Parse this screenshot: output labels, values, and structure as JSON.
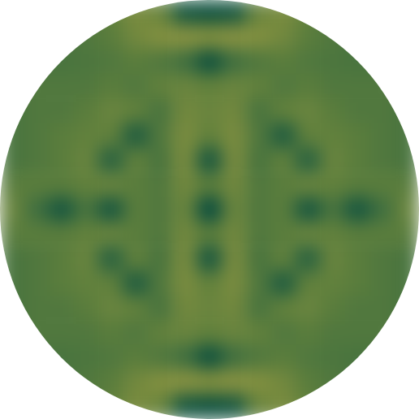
{
  "chart_data": {
    "type": "heatmap",
    "tick_labels": false,
    "zlim": [
      0,
      1
    ],
    "cells": [
      [
        null,
        null,
        null,
        0.45,
        0.55,
        0.7,
        0.6,
        0.1,
        0.05,
        0.1,
        0.6,
        0.7,
        0.55,
        0.45,
        null,
        null,
        null
      ],
      [
        null,
        null,
        0.4,
        0.45,
        0.5,
        0.65,
        0.75,
        0.8,
        0.75,
        0.8,
        0.75,
        0.65,
        0.5,
        0.45,
        0.4,
        null,
        null
      ],
      [
        null,
        0.4,
        0.4,
        0.42,
        0.45,
        0.5,
        0.45,
        0.35,
        0.05,
        0.35,
        0.45,
        0.5,
        0.45,
        0.42,
        0.4,
        0.4,
        null
      ],
      [
        0.45,
        0.45,
        0.45,
        0.45,
        0.5,
        0.45,
        0.55,
        0.6,
        0.55,
        0.6,
        0.55,
        0.45,
        0.5,
        0.45,
        0.45,
        0.45,
        0.45
      ],
      [
        0.4,
        0.45,
        0.45,
        0.5,
        0.6,
        0.55,
        0.4,
        0.65,
        0.6,
        0.65,
        0.4,
        0.55,
        0.6,
        0.5,
        0.45,
        0.45,
        0.4
      ],
      [
        0.4,
        0.45,
        0.5,
        0.55,
        0.55,
        0.15,
        0.45,
        0.7,
        0.55,
        0.7,
        0.45,
        0.15,
        0.55,
        0.55,
        0.5,
        0.45,
        0.4
      ],
      [
        0.4,
        0.45,
        0.5,
        0.6,
        0.2,
        0.55,
        0.4,
        0.7,
        0.1,
        0.7,
        0.4,
        0.55,
        0.2,
        0.6,
        0.5,
        0.45,
        0.4
      ],
      [
        0.5,
        0.5,
        0.5,
        0.55,
        0.6,
        0.5,
        0.45,
        0.65,
        0.5,
        0.65,
        0.45,
        0.5,
        0.6,
        0.55,
        0.5,
        0.5,
        0.5
      ],
      [
        0.6,
        0.35,
        0.1,
        0.4,
        0.1,
        0.5,
        0.45,
        0.6,
        0.0,
        0.6,
        0.45,
        0.5,
        0.1,
        0.4,
        0.1,
        0.35,
        0.6
      ],
      [
        0.5,
        0.5,
        0.5,
        0.55,
        0.6,
        0.5,
        0.45,
        0.65,
        0.5,
        0.65,
        0.45,
        0.5,
        0.6,
        0.55,
        0.5,
        0.5,
        0.5
      ],
      [
        0.4,
        0.45,
        0.5,
        0.6,
        0.2,
        0.55,
        0.4,
        0.7,
        0.1,
        0.7,
        0.4,
        0.55,
        0.2,
        0.6,
        0.5,
        0.45,
        0.4
      ],
      [
        0.4,
        0.45,
        0.5,
        0.55,
        0.55,
        0.15,
        0.45,
        0.7,
        0.55,
        0.7,
        0.45,
        0.15,
        0.55,
        0.55,
        0.5,
        0.45,
        0.4
      ],
      [
        0.4,
        0.45,
        0.45,
        0.5,
        0.6,
        0.55,
        0.4,
        0.65,
        0.6,
        0.65,
        0.4,
        0.55,
        0.6,
        0.5,
        0.45,
        0.45,
        0.4
      ],
      [
        0.45,
        0.45,
        0.45,
        0.45,
        0.5,
        0.45,
        0.55,
        0.6,
        0.55,
        0.6,
        0.55,
        0.45,
        0.5,
        0.45,
        0.45,
        0.45,
        0.45
      ],
      [
        null,
        0.4,
        0.4,
        0.42,
        0.45,
        0.5,
        0.45,
        0.35,
        0.05,
        0.35,
        0.45,
        0.5,
        0.45,
        0.42,
        0.4,
        0.4,
        null
      ],
      [
        null,
        null,
        0.4,
        0.45,
        0.5,
        0.65,
        0.75,
        0.8,
        0.75,
        0.8,
        0.75,
        0.65,
        0.5,
        0.45,
        0.4,
        null,
        null
      ],
      [
        null,
        null,
        null,
        0.45,
        0.55,
        0.7,
        0.6,
        0.1,
        0.05,
        0.1,
        0.6,
        0.7,
        0.55,
        0.45,
        null,
        null,
        null
      ]
    ]
  }
}
